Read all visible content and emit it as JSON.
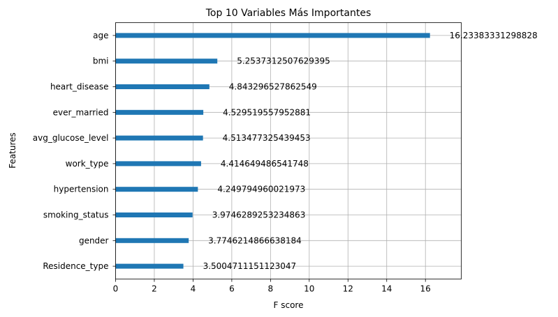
{
  "chart_data": {
    "type": "bar",
    "orientation": "horizontal",
    "title": "Top 10 Variables Más Importantes",
    "xlabel": "F score",
    "ylabel": "Features",
    "xlim": [
      0,
      17.85
    ],
    "xticks": [
      0,
      2,
      4,
      6,
      8,
      10,
      12,
      14,
      16
    ],
    "grid": true,
    "bar_color": "#1f77b4",
    "categories": [
      "Residence_type",
      "gender",
      "smoking_status",
      "hypertension",
      "work_type",
      "avg_glucose_level",
      "ever_married",
      "heart_disease",
      "bmi",
      "age"
    ],
    "values": [
      3.5004711151123047,
      3.7746214866638184,
      3.9746289253234863,
      4.249794960021973,
      4.414649486541748,
      4.513477325439453,
      4.529519557952881,
      4.843296527862549,
      5.2537312507629395,
      16.23383331298828
    ],
    "data_labels": [
      "3.5004711151123047",
      "3.7746214866638184",
      "3.9746289253234863",
      "4.249794960021973",
      "4.414649486541748",
      "4.513477325439453",
      "4.529519557952881",
      "4.843296527862549",
      "5.2537312507629395",
      "16.23383331298828"
    ]
  }
}
